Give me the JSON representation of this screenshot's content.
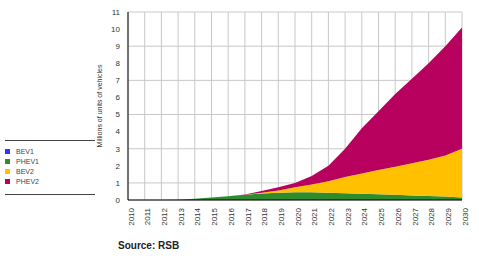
{
  "chart_data": {
    "type": "area",
    "y_label": "Millions of units of vehicles",
    "annotations": [
      "Source: RSB"
    ],
    "categories": [
      "2010",
      "2011",
      "2012",
      "2013",
      "2014",
      "2015",
      "2016",
      "2017",
      "2018",
      "2019",
      "2020",
      "2021",
      "2022",
      "2023",
      "2024",
      "2025",
      "2026",
      "2027",
      "2028",
      "2029",
      "2030"
    ],
    "series": [
      {
        "name": "BEV1",
        "color": "#3333ff",
        "values": [
          0,
          0,
          0,
          0,
          0,
          0,
          0,
          0,
          0,
          0,
          0,
          0,
          0,
          0,
          0,
          0,
          0,
          0,
          0,
          0,
          0
        ]
      },
      {
        "name": "PHEV1",
        "color": "#2e8b2e",
        "values": [
          0,
          0,
          0,
          0.02,
          0.08,
          0.15,
          0.22,
          0.3,
          0.38,
          0.43,
          0.45,
          0.45,
          0.43,
          0.4,
          0.37,
          0.34,
          0.3,
          0.27,
          0.23,
          0.2,
          0.15
        ]
      },
      {
        "name": "BEV2",
        "color": "#ffc000",
        "values": [
          0,
          0,
          0,
          0,
          0,
          0,
          0,
          0,
          0.05,
          0.12,
          0.3,
          0.45,
          0.67,
          0.95,
          1.18,
          1.41,
          1.65,
          1.88,
          2.12,
          2.4,
          2.85
        ]
      },
      {
        "name": "PHEV2",
        "color": "#b8005f",
        "values": [
          0,
          0,
          0,
          0,
          0,
          0,
          0,
          0.02,
          0.1,
          0.2,
          0.25,
          0.5,
          0.9,
          1.65,
          2.65,
          3.45,
          4.25,
          4.95,
          5.65,
          6.4,
          7.1
        ]
      }
    ],
    "ylim": [
      0,
      11
    ],
    "yticks": [
      0,
      1,
      2,
      3,
      4,
      5,
      6,
      7,
      8,
      9,
      10,
      11
    ],
    "grid": true,
    "stacked": true,
    "legend": "left"
  }
}
